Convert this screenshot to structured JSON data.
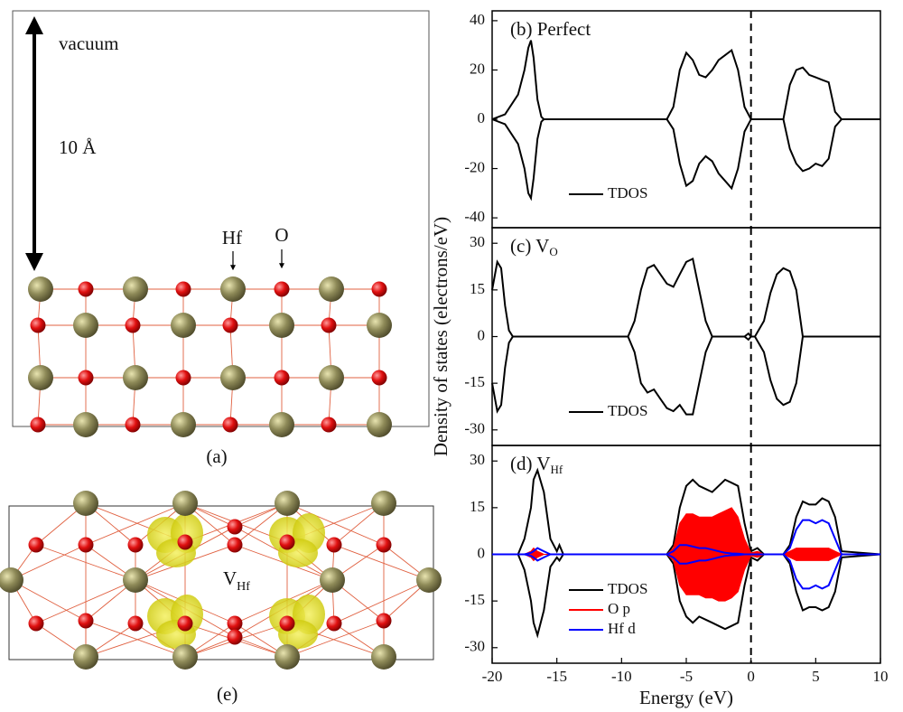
{
  "structure": {
    "vacuum": "vacuum",
    "height": "10 Å",
    "hf": "Hf",
    "o": "O",
    "panel_a": "(a)",
    "vacancy": "V",
    "vacancy_sub": "Hf",
    "panel_e": "(e)"
  },
  "chart_data": [
    {
      "type": "line",
      "title": "(b) Perfect",
      "xlim": [
        -20,
        10
      ],
      "ylim": [
        -44,
        44
      ],
      "yticks": [
        -40,
        -20,
        0,
        20,
        40
      ],
      "fermi_level": 0,
      "x": [
        -20,
        -19,
        -18,
        -17.5,
        -17.2,
        -17,
        -16.8,
        -16.5,
        -16.2,
        -16,
        -6.5,
        -6,
        -5.5,
        -5,
        -4.5,
        -4,
        -3.5,
        -3,
        -2.5,
        -2,
        -1.5,
        -1,
        -0.5,
        0,
        2.5,
        3,
        3.5,
        4,
        4.5,
        5,
        5.5,
        6,
        6.5,
        7,
        10
      ],
      "series": [
        {
          "name": "TDOS",
          "color": "#000000",
          "values": [
            0,
            2,
            10,
            20,
            29,
            32,
            25,
            8,
            1,
            0,
            0,
            5,
            20,
            27,
            24,
            18,
            17,
            20,
            24,
            26,
            28,
            20,
            5,
            0,
            0,
            14,
            20,
            21,
            18,
            17,
            16,
            15,
            3,
            0,
            0
          ],
          "values_down": [
            0,
            -2,
            -10,
            -20,
            -30,
            -32,
            -24,
            -8,
            -1,
            0,
            0,
            -4,
            -18,
            -27,
            -25,
            -18,
            -15,
            -17,
            -22,
            -25,
            -28,
            -20,
            -5,
            0,
            0,
            -12,
            -18,
            -21,
            -20,
            -18,
            -19,
            -16,
            -3,
            0,
            0
          ]
        }
      ]
    },
    {
      "type": "line",
      "title": "(c) V",
      "title_sub": "O",
      "ylabel": "Density of states (electrons/eV)",
      "xlim": [
        -20,
        10
      ],
      "ylim": [
        -35,
        35
      ],
      "yticks": [
        -30,
        -15,
        0,
        15,
        30
      ],
      "fermi_level": 0,
      "x": [
        -20,
        -19.6,
        -19.3,
        -19,
        -18.7,
        -18.4,
        -18,
        -10,
        -9.5,
        -9,
        -8.5,
        -8,
        -7.5,
        -7,
        -6.5,
        -6,
        -5.5,
        -5,
        -4.5,
        -4,
        -3.5,
        -3,
        -2.5,
        -2,
        -0.5,
        -0.2,
        0,
        0.3,
        1,
        1.5,
        2,
        2.5,
        3,
        3.5,
        4,
        10
      ],
      "series": [
        {
          "name": "TDOS",
          "color": "#000000",
          "values": [
            15,
            24,
            22,
            10,
            2,
            0,
            0,
            0,
            0,
            5,
            15,
            22,
            23,
            20,
            17,
            16,
            20,
            24,
            25,
            15,
            5,
            0,
            0,
            0,
            0,
            1,
            0,
            0,
            5,
            14,
            20,
            22,
            21,
            15,
            0,
            0
          ],
          "values_down": [
            -15,
            -24,
            -22,
            -10,
            -2,
            0,
            0,
            0,
            0,
            -5,
            -15,
            -18,
            -17,
            -20,
            -23,
            -24,
            -22,
            -25,
            -25,
            -15,
            -5,
            0,
            0,
            0,
            0,
            -1,
            0,
            0,
            -5,
            -14,
            -20,
            -22,
            -21,
            -15,
            0,
            0
          ]
        }
      ]
    },
    {
      "type": "line",
      "title": "(d) V",
      "title_sub": "Hf",
      "xlabel": "Energy (eV)",
      "xlim": [
        -20,
        10
      ],
      "ylim": [
        -35,
        35
      ],
      "xticks": [
        -20,
        -15,
        -10,
        -5,
        0,
        5,
        10
      ],
      "yticks": [
        -30,
        -15,
        0,
        15,
        30
      ],
      "fermi_level": 0,
      "x": [
        -20,
        -18,
        -17.5,
        -17,
        -16.8,
        -16.5,
        -16,
        -15.5,
        -15,
        -14.8,
        -14.5,
        -10,
        -6.5,
        -6,
        -5.5,
        -5,
        -4.5,
        -4,
        -3.5,
        -3,
        -2.5,
        -2,
        -1.5,
        -1,
        -0.5,
        0,
        0.5,
        1,
        2.5,
        3,
        3.5,
        4,
        4.5,
        5,
        5.5,
        6,
        6.5,
        7,
        10
      ],
      "series": [
        {
          "name": "TDOS",
          "color": "#000000",
          "values": [
            0,
            0,
            5,
            15,
            24,
            27,
            20,
            5,
            1,
            3,
            0,
            0,
            0,
            3,
            15,
            22,
            24,
            22,
            21,
            20,
            22,
            24,
            23,
            22,
            10,
            1,
            2,
            0,
            0,
            3,
            12,
            17,
            16,
            16,
            18,
            17,
            12,
            1,
            0
          ],
          "values_down": [
            0,
            0,
            -5,
            -15,
            -22,
            -26,
            -18,
            -4,
            -1,
            -2,
            0,
            0,
            0,
            -3,
            -15,
            -20,
            -22,
            -20,
            -21,
            -22,
            -23,
            -24,
            -23,
            -22,
            -10,
            -1,
            -2,
            0,
            0,
            -3,
            -12,
            -18,
            -17,
            -17,
            -18,
            -17,
            -12,
            -1,
            0
          ]
        },
        {
          "name": "O p",
          "color": "#ff0000",
          "fill": true,
          "values": [
            0,
            0,
            0,
            1,
            2,
            1,
            0,
            0,
            0,
            0,
            0,
            0,
            0,
            2,
            10,
            13,
            13,
            12,
            12,
            12,
            13,
            14,
            15,
            12,
            5,
            0.5,
            1,
            0,
            0,
            1,
            2,
            2,
            2,
            2,
            2,
            2,
            1,
            0,
            0
          ],
          "values_down": [
            0,
            0,
            0,
            -1,
            -2,
            -1,
            0,
            0,
            0,
            0,
            0,
            0,
            0,
            -2,
            -10,
            -13,
            -13,
            -13,
            -14,
            -14,
            -15,
            -15,
            -14,
            -12,
            -5,
            -0.5,
            -1,
            0,
            0,
            -1,
            -2,
            -2,
            -2,
            -2,
            -2,
            -2,
            -1,
            0,
            0
          ]
        },
        {
          "name": "Hf d",
          "color": "#0000ff",
          "values": [
            0,
            0,
            0,
            0.5,
            1,
            2,
            1,
            0,
            0,
            0,
            0,
            0,
            0,
            1,
            3,
            3,
            2.5,
            2,
            2,
            1.5,
            1,
            0.5,
            0.3,
            0.2,
            0,
            0,
            0,
            0,
            0,
            2,
            8,
            11,
            11,
            10,
            11,
            10,
            5,
            0,
            0
          ],
          "values_down": [
            0,
            0,
            0,
            -0.5,
            -1,
            -2,
            -1,
            0,
            0,
            0,
            0,
            0,
            0,
            -1,
            -3,
            -3,
            -2.5,
            -2,
            -2,
            -1.5,
            -1,
            -0.5,
            -0.3,
            -0.2,
            0,
            0,
            0,
            0,
            0,
            -2,
            -8,
            -11,
            -11,
            -10,
            -11,
            -10,
            -5,
            0,
            0
          ]
        }
      ]
    }
  ]
}
